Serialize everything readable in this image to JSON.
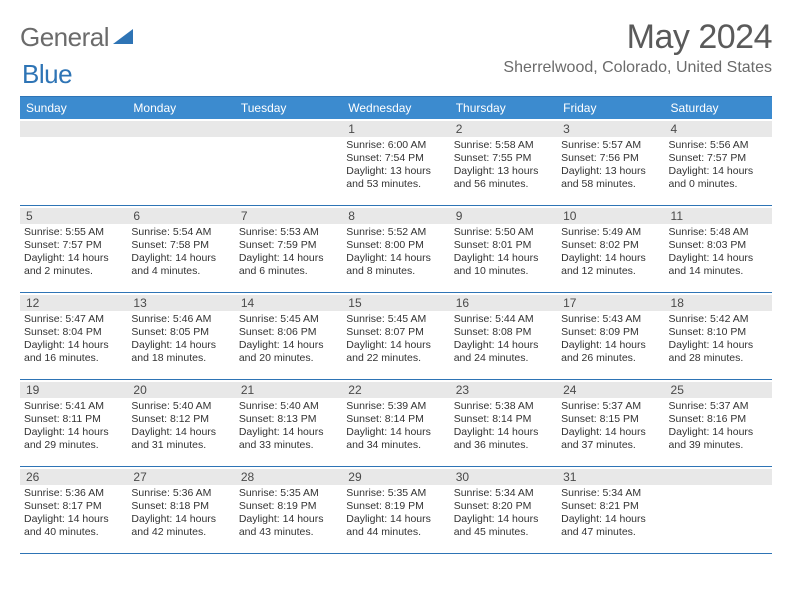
{
  "colors": {
    "header_bar": "#3c8bcf",
    "rule": "#2e74b5",
    "daynum_bg": "#e8e8e8",
    "logo_gray": "#6b6b6b",
    "logo_blue": "#2e74b5",
    "text": "#333333",
    "title_gray": "#5a5a5a"
  },
  "logo": {
    "part1": "General",
    "part2": "Blue"
  },
  "title": "May 2024",
  "location": "Sherrelwood, Colorado, United States",
  "weekdays": [
    "Sunday",
    "Monday",
    "Tuesday",
    "Wednesday",
    "Thursday",
    "Friday",
    "Saturday"
  ],
  "weeks": [
    [
      null,
      null,
      null,
      {
        "n": "1",
        "sr": "Sunrise: 6:00 AM",
        "ss": "Sunset: 7:54 PM",
        "d1": "Daylight: 13 hours",
        "d2": "and 53 minutes."
      },
      {
        "n": "2",
        "sr": "Sunrise: 5:58 AM",
        "ss": "Sunset: 7:55 PM",
        "d1": "Daylight: 13 hours",
        "d2": "and 56 minutes."
      },
      {
        "n": "3",
        "sr": "Sunrise: 5:57 AM",
        "ss": "Sunset: 7:56 PM",
        "d1": "Daylight: 13 hours",
        "d2": "and 58 minutes."
      },
      {
        "n": "4",
        "sr": "Sunrise: 5:56 AM",
        "ss": "Sunset: 7:57 PM",
        "d1": "Daylight: 14 hours",
        "d2": "and 0 minutes."
      }
    ],
    [
      {
        "n": "5",
        "sr": "Sunrise: 5:55 AM",
        "ss": "Sunset: 7:57 PM",
        "d1": "Daylight: 14 hours",
        "d2": "and 2 minutes."
      },
      {
        "n": "6",
        "sr": "Sunrise: 5:54 AM",
        "ss": "Sunset: 7:58 PM",
        "d1": "Daylight: 14 hours",
        "d2": "and 4 minutes."
      },
      {
        "n": "7",
        "sr": "Sunrise: 5:53 AM",
        "ss": "Sunset: 7:59 PM",
        "d1": "Daylight: 14 hours",
        "d2": "and 6 minutes."
      },
      {
        "n": "8",
        "sr": "Sunrise: 5:52 AM",
        "ss": "Sunset: 8:00 PM",
        "d1": "Daylight: 14 hours",
        "d2": "and 8 minutes."
      },
      {
        "n": "9",
        "sr": "Sunrise: 5:50 AM",
        "ss": "Sunset: 8:01 PM",
        "d1": "Daylight: 14 hours",
        "d2": "and 10 minutes."
      },
      {
        "n": "10",
        "sr": "Sunrise: 5:49 AM",
        "ss": "Sunset: 8:02 PM",
        "d1": "Daylight: 14 hours",
        "d2": "and 12 minutes."
      },
      {
        "n": "11",
        "sr": "Sunrise: 5:48 AM",
        "ss": "Sunset: 8:03 PM",
        "d1": "Daylight: 14 hours",
        "d2": "and 14 minutes."
      }
    ],
    [
      {
        "n": "12",
        "sr": "Sunrise: 5:47 AM",
        "ss": "Sunset: 8:04 PM",
        "d1": "Daylight: 14 hours",
        "d2": "and 16 minutes."
      },
      {
        "n": "13",
        "sr": "Sunrise: 5:46 AM",
        "ss": "Sunset: 8:05 PM",
        "d1": "Daylight: 14 hours",
        "d2": "and 18 minutes."
      },
      {
        "n": "14",
        "sr": "Sunrise: 5:45 AM",
        "ss": "Sunset: 8:06 PM",
        "d1": "Daylight: 14 hours",
        "d2": "and 20 minutes."
      },
      {
        "n": "15",
        "sr": "Sunrise: 5:45 AM",
        "ss": "Sunset: 8:07 PM",
        "d1": "Daylight: 14 hours",
        "d2": "and 22 minutes."
      },
      {
        "n": "16",
        "sr": "Sunrise: 5:44 AM",
        "ss": "Sunset: 8:08 PM",
        "d1": "Daylight: 14 hours",
        "d2": "and 24 minutes."
      },
      {
        "n": "17",
        "sr": "Sunrise: 5:43 AM",
        "ss": "Sunset: 8:09 PM",
        "d1": "Daylight: 14 hours",
        "d2": "and 26 minutes."
      },
      {
        "n": "18",
        "sr": "Sunrise: 5:42 AM",
        "ss": "Sunset: 8:10 PM",
        "d1": "Daylight: 14 hours",
        "d2": "and 28 minutes."
      }
    ],
    [
      {
        "n": "19",
        "sr": "Sunrise: 5:41 AM",
        "ss": "Sunset: 8:11 PM",
        "d1": "Daylight: 14 hours",
        "d2": "and 29 minutes."
      },
      {
        "n": "20",
        "sr": "Sunrise: 5:40 AM",
        "ss": "Sunset: 8:12 PM",
        "d1": "Daylight: 14 hours",
        "d2": "and 31 minutes."
      },
      {
        "n": "21",
        "sr": "Sunrise: 5:40 AM",
        "ss": "Sunset: 8:13 PM",
        "d1": "Daylight: 14 hours",
        "d2": "and 33 minutes."
      },
      {
        "n": "22",
        "sr": "Sunrise: 5:39 AM",
        "ss": "Sunset: 8:14 PM",
        "d1": "Daylight: 14 hours",
        "d2": "and 34 minutes."
      },
      {
        "n": "23",
        "sr": "Sunrise: 5:38 AM",
        "ss": "Sunset: 8:14 PM",
        "d1": "Daylight: 14 hours",
        "d2": "and 36 minutes."
      },
      {
        "n": "24",
        "sr": "Sunrise: 5:37 AM",
        "ss": "Sunset: 8:15 PM",
        "d1": "Daylight: 14 hours",
        "d2": "and 37 minutes."
      },
      {
        "n": "25",
        "sr": "Sunrise: 5:37 AM",
        "ss": "Sunset: 8:16 PM",
        "d1": "Daylight: 14 hours",
        "d2": "and 39 minutes."
      }
    ],
    [
      {
        "n": "26",
        "sr": "Sunrise: 5:36 AM",
        "ss": "Sunset: 8:17 PM",
        "d1": "Daylight: 14 hours",
        "d2": "and 40 minutes."
      },
      {
        "n": "27",
        "sr": "Sunrise: 5:36 AM",
        "ss": "Sunset: 8:18 PM",
        "d1": "Daylight: 14 hours",
        "d2": "and 42 minutes."
      },
      {
        "n": "28",
        "sr": "Sunrise: 5:35 AM",
        "ss": "Sunset: 8:19 PM",
        "d1": "Daylight: 14 hours",
        "d2": "and 43 minutes."
      },
      {
        "n": "29",
        "sr": "Sunrise: 5:35 AM",
        "ss": "Sunset: 8:19 PM",
        "d1": "Daylight: 14 hours",
        "d2": "and 44 minutes."
      },
      {
        "n": "30",
        "sr": "Sunrise: 5:34 AM",
        "ss": "Sunset: 8:20 PM",
        "d1": "Daylight: 14 hours",
        "d2": "and 45 minutes."
      },
      {
        "n": "31",
        "sr": "Sunrise: 5:34 AM",
        "ss": "Sunset: 8:21 PM",
        "d1": "Daylight: 14 hours",
        "d2": "and 47 minutes."
      },
      null
    ]
  ]
}
